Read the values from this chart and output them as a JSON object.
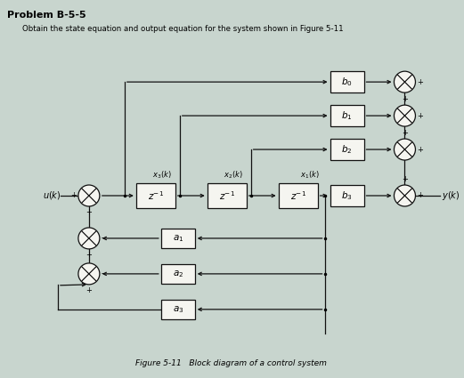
{
  "title": "Problem B-5-5",
  "subtitle": "Obtain the state equation and output equation for the system shown in Figure 5-11",
  "fig_caption": "Figure 5-11   Block diagram of a control system",
  "bg_color": "#c8d5ce",
  "box_color": "#f5f5f0",
  "box_edge": "#111111",
  "line_color": "#111111",
  "text_color": "#111111"
}
